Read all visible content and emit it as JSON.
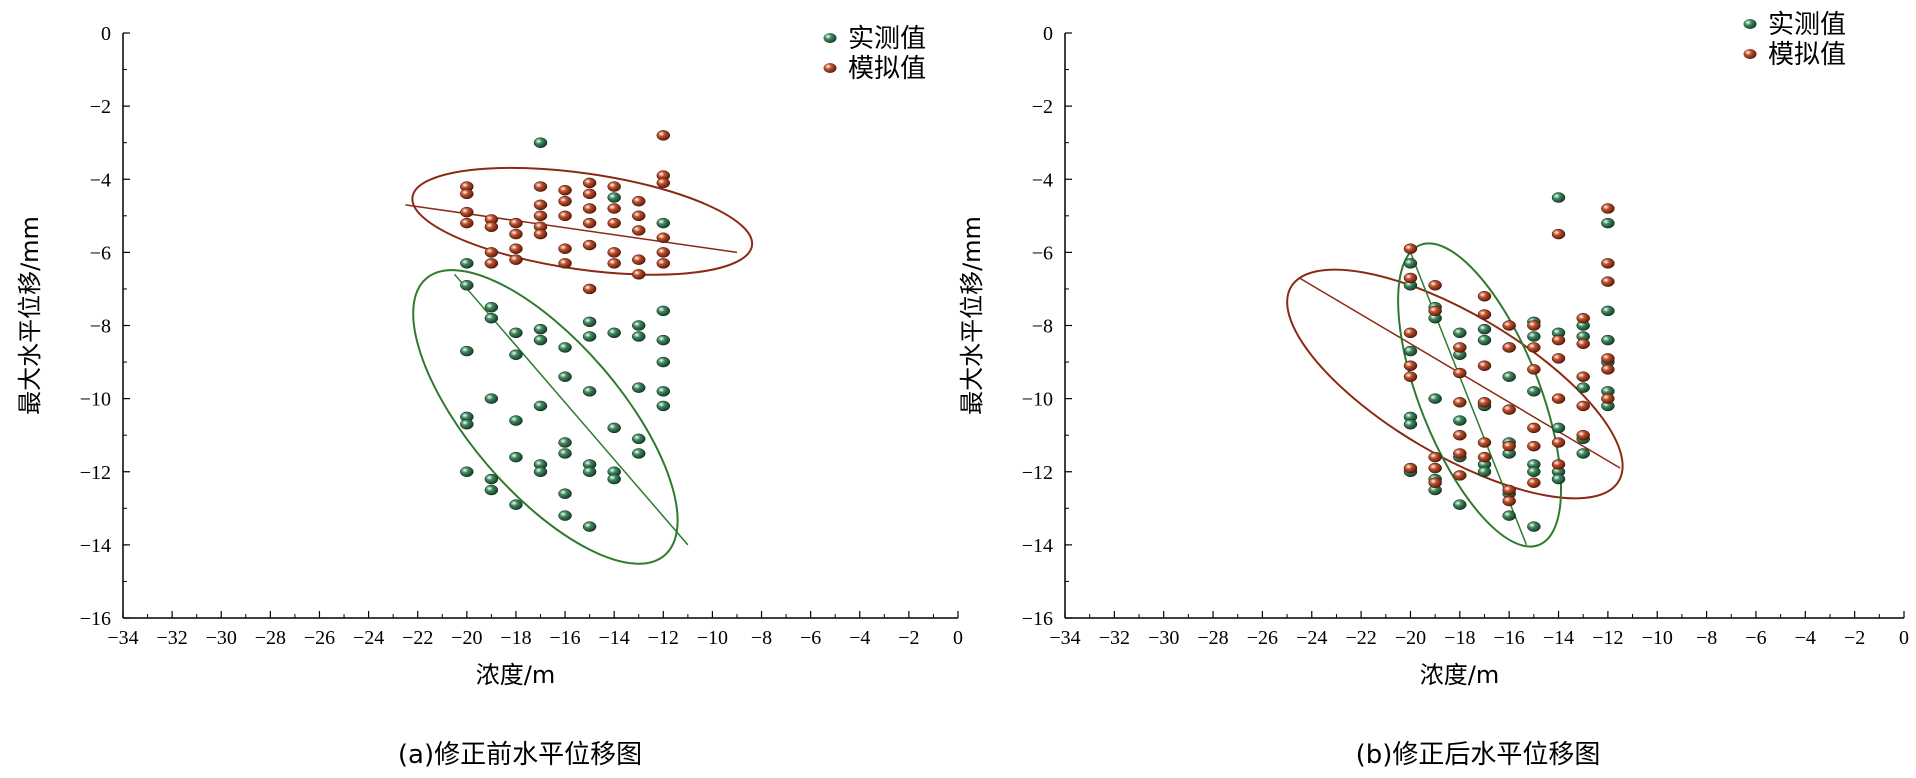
{
  "chart_data": [
    {
      "type": "scatter",
      "caption": "(a)修正前水平位移图",
      "xlabel": "浓度/m",
      "ylabel": "最大水平位移/mm",
      "xlim": [
        -34,
        0
      ],
      "ylim": [
        -16,
        0
      ],
      "xticks": [
        "−34",
        "−32",
        "−30",
        "−28",
        "−26",
        "−24",
        "−22",
        "−20",
        "−18",
        "−16",
        "−14",
        "−12",
        "−10",
        "−8",
        "−6",
        "−4",
        "−2",
        "0"
      ],
      "yticks": [
        "0",
        "−2",
        "−4",
        "−6",
        "−8",
        "−10",
        "−12",
        "−14",
        "−16"
      ],
      "legend_position": "top-right",
      "series": [
        {
          "name": "实测值",
          "color": "#1e5a3c",
          "points": [
            [
              -20,
              -6.3
            ],
            [
              -20,
              -6.9
            ],
            [
              -20,
              -8.7
            ],
            [
              -20,
              -10.5
            ],
            [
              -20,
              -10.7
            ],
            [
              -20,
              -12.0
            ],
            [
              -19,
              -7.5
            ],
            [
              -19,
              -7.8
            ],
            [
              -19,
              -10.0
            ],
            [
              -19,
              -12.2
            ],
            [
              -19,
              -12.5
            ],
            [
              -18,
              -8.2
            ],
            [
              -18,
              -8.8
            ],
            [
              -18,
              -10.6
            ],
            [
              -18,
              -11.6
            ],
            [
              -18,
              -12.9
            ],
            [
              -17,
              -3.0
            ],
            [
              -17,
              -8.1
            ],
            [
              -17,
              -8.4
            ],
            [
              -17,
              -10.2
            ],
            [
              -17,
              -11.8
            ],
            [
              -17,
              -12.0
            ],
            [
              -16,
              -8.6
            ],
            [
              -16,
              -9.4
            ],
            [
              -16,
              -11.2
            ],
            [
              -16,
              -11.5
            ],
            [
              -16,
              -12.6
            ],
            [
              -16,
              -13.2
            ],
            [
              -15,
              -7.9
            ],
            [
              -15,
              -8.3
            ],
            [
              -15,
              -9.8
            ],
            [
              -15,
              -11.8
            ],
            [
              -15,
              -12.0
            ],
            [
              -15,
              -13.5
            ],
            [
              -14,
              -4.5
            ],
            [
              -14,
              -8.2
            ],
            [
              -14,
              -10.8
            ],
            [
              -14,
              -12.0
            ],
            [
              -14,
              -12.2
            ],
            [
              -13,
              -8.0
            ],
            [
              -13,
              -8.3
            ],
            [
              -13,
              -9.7
            ],
            [
              -13,
              -11.1
            ],
            [
              -13,
              -11.5
            ],
            [
              -12,
              -5.2
            ],
            [
              -12,
              -7.6
            ],
            [
              -12,
              -8.4
            ],
            [
              -12,
              -9.0
            ],
            [
              -12,
              -9.8
            ],
            [
              -12,
              -10.2
            ]
          ]
        },
        {
          "name": "模拟值",
          "color": "#8b2a14",
          "points": [
            [
              -20,
              -4.2
            ],
            [
              -20,
              -4.4
            ],
            [
              -20,
              -4.9
            ],
            [
              -20,
              -5.2
            ],
            [
              -19,
              -5.1
            ],
            [
              -19,
              -5.3
            ],
            [
              -19,
              -6.0
            ],
            [
              -19,
              -6.3
            ],
            [
              -18,
              -5.2
            ],
            [
              -18,
              -5.5
            ],
            [
              -18,
              -5.9
            ],
            [
              -18,
              -6.2
            ],
            [
              -17,
              -4.2
            ],
            [
              -17,
              -4.7
            ],
            [
              -17,
              -5.0
            ],
            [
              -17,
              -5.3
            ],
            [
              -17,
              -5.5
            ],
            [
              -16,
              -4.3
            ],
            [
              -16,
              -4.6
            ],
            [
              -16,
              -5.0
            ],
            [
              -16,
              -5.9
            ],
            [
              -16,
              -6.3
            ],
            [
              -15,
              -4.1
            ],
            [
              -15,
              -4.4
            ],
            [
              -15,
              -4.8
            ],
            [
              -15,
              -5.2
            ],
            [
              -15,
              -5.8
            ],
            [
              -15,
              -7.0
            ],
            [
              -14,
              -4.2
            ],
            [
              -14,
              -4.8
            ],
            [
              -14,
              -5.2
            ],
            [
              -14,
              -6.0
            ],
            [
              -14,
              -6.3
            ],
            [
              -13,
              -4.6
            ],
            [
              -13,
              -5.0
            ],
            [
              -13,
              -5.4
            ],
            [
              -13,
              -6.2
            ],
            [
              -13,
              -6.6
            ],
            [
              -12,
              -2.8
            ],
            [
              -12,
              -3.9
            ],
            [
              -12,
              -4.1
            ],
            [
              -12,
              -5.6
            ],
            [
              -12,
              -6.0
            ],
            [
              -12,
              -6.3
            ]
          ]
        }
      ],
      "ellipses": [
        {
          "color": "#8b2a14",
          "cx": -15.3,
          "cy": -5.15,
          "rx": 6.85,
          "ry": 1.85,
          "axis": [
            [
              -22.5,
              -4.7
            ],
            [
              -9,
              -6.0
            ]
          ]
        },
        {
          "color": "#2f7a2f",
          "cx": -16.8,
          "cy": -10.5,
          "rx": 8.2,
          "ry": 2.9,
          "axis": [
            [
              -20.5,
              -6.6
            ],
            [
              -11,
              -14.0
            ]
          ]
        }
      ]
    },
    {
      "type": "scatter",
      "caption": "(b)修正后水平位移图",
      "xlabel": "浓度/m",
      "ylabel": "最大水平位移/mm",
      "xlim": [
        -34,
        0
      ],
      "ylim": [
        -16,
        0
      ],
      "xticks": [
        "−34",
        "−32",
        "−30",
        "−28",
        "−26",
        "−24",
        "−22",
        "−20",
        "−18",
        "−16",
        "−14",
        "−12",
        "−10",
        "−8",
        "−6",
        "−4",
        "−2",
        "0"
      ],
      "yticks": [
        "0",
        "−2",
        "−4",
        "−6",
        "−8",
        "−10",
        "−12",
        "−14",
        "−16"
      ],
      "legend_position": "top-right",
      "series": [
        {
          "name": "实测值",
          "color": "#1e5a3c",
          "points": [
            [
              -20,
              -6.3
            ],
            [
              -20,
              -6.9
            ],
            [
              -20,
              -8.7
            ],
            [
              -20,
              -10.5
            ],
            [
              -20,
              -10.7
            ],
            [
              -20,
              -12.0
            ],
            [
              -19,
              -7.5
            ],
            [
              -19,
              -7.8
            ],
            [
              -19,
              -10.0
            ],
            [
              -19,
              -12.2
            ],
            [
              -19,
              -12.5
            ],
            [
              -18,
              -8.2
            ],
            [
              -18,
              -8.8
            ],
            [
              -18,
              -10.6
            ],
            [
              -18,
              -11.6
            ],
            [
              -18,
              -12.9
            ],
            [
              -17,
              -8.1
            ],
            [
              -17,
              -8.4
            ],
            [
              -17,
              -10.2
            ],
            [
              -17,
              -11.8
            ],
            [
              -17,
              -12.0
            ],
            [
              -16,
              -8.6
            ],
            [
              -16,
              -9.4
            ],
            [
              -16,
              -11.2
            ],
            [
              -16,
              -11.5
            ],
            [
              -16,
              -12.6
            ],
            [
              -16,
              -13.2
            ],
            [
              -15,
              -7.9
            ],
            [
              -15,
              -8.3
            ],
            [
              -15,
              -9.8
            ],
            [
              -15,
              -11.8
            ],
            [
              -15,
              -12.0
            ],
            [
              -15,
              -13.5
            ],
            [
              -14,
              -4.5
            ],
            [
              -14,
              -8.2
            ],
            [
              -14,
              -10.8
            ],
            [
              -14,
              -12.0
            ],
            [
              -14,
              -12.2
            ],
            [
              -13,
              -8.0
            ],
            [
              -13,
              -8.3
            ],
            [
              -13,
              -9.7
            ],
            [
              -13,
              -11.1
            ],
            [
              -13,
              -11.5
            ],
            [
              -12,
              -5.2
            ],
            [
              -12,
              -7.6
            ],
            [
              -12,
              -8.4
            ],
            [
              -12,
              -9.0
            ],
            [
              -12,
              -9.8
            ],
            [
              -12,
              -10.2
            ]
          ]
        },
        {
          "name": "模拟值",
          "color": "#8b2a14",
          "points": [
            [
              -20,
              -5.9
            ],
            [
              -20,
              -6.7
            ],
            [
              -20,
              -8.2
            ],
            [
              -20,
              -9.1
            ],
            [
              -20,
              -9.4
            ],
            [
              -20,
              -11.9
            ],
            [
              -19,
              -6.9
            ],
            [
              -19,
              -7.6
            ],
            [
              -19,
              -11.6
            ],
            [
              -19,
              -11.9
            ],
            [
              -19,
              -12.3
            ],
            [
              -18,
              -8.6
            ],
            [
              -18,
              -9.3
            ],
            [
              -18,
              -10.1
            ],
            [
              -18,
              -11.0
            ],
            [
              -18,
              -11.5
            ],
            [
              -18,
              -12.1
            ],
            [
              -17,
              -7.2
            ],
            [
              -17,
              -7.7
            ],
            [
              -17,
              -9.1
            ],
            [
              -17,
              -10.1
            ],
            [
              -17,
              -11.2
            ],
            [
              -17,
              -11.6
            ],
            [
              -16,
              -8.0
            ],
            [
              -16,
              -8.6
            ],
            [
              -16,
              -10.3
            ],
            [
              -16,
              -11.3
            ],
            [
              -16,
              -12.5
            ],
            [
              -16,
              -12.8
            ],
            [
              -15,
              -8.0
            ],
            [
              -15,
              -8.6
            ],
            [
              -15,
              -9.2
            ],
            [
              -15,
              -10.8
            ],
            [
              -15,
              -11.3
            ],
            [
              -15,
              -12.3
            ],
            [
              -14,
              -5.5
            ],
            [
              -14,
              -8.4
            ],
            [
              -14,
              -8.9
            ],
            [
              -14,
              -10.0
            ],
            [
              -14,
              -11.2
            ],
            [
              -14,
              -11.8
            ],
            [
              -13,
              -7.8
            ],
            [
              -13,
              -8.5
            ],
            [
              -13,
              -9.4
            ],
            [
              -13,
              -10.2
            ],
            [
              -13,
              -11.0
            ],
            [
              -12,
              -4.8
            ],
            [
              -12,
              -6.3
            ],
            [
              -12,
              -6.8
            ],
            [
              -12,
              -8.9
            ],
            [
              -12,
              -9.2
            ],
            [
              -12,
              -10.0
            ]
          ]
        }
      ],
      "ellipses": [
        {
          "color": "#8b2a14",
          "cx": -18.2,
          "cy": -9.6,
          "rx": 7.2,
          "ry": 2.7,
          "axis": [
            [
              -24.5,
              -6.7
            ],
            [
              -11.5,
              -11.9
            ]
          ]
        },
        {
          "color": "#2f7a2f",
          "cx": -17.2,
          "cy": -9.9,
          "rx": 4.7,
          "ry": 2.3,
          "axis": [
            [
              -20,
              -6.0
            ],
            [
              -15.3,
              -14.0
            ]
          ]
        }
      ]
    }
  ]
}
